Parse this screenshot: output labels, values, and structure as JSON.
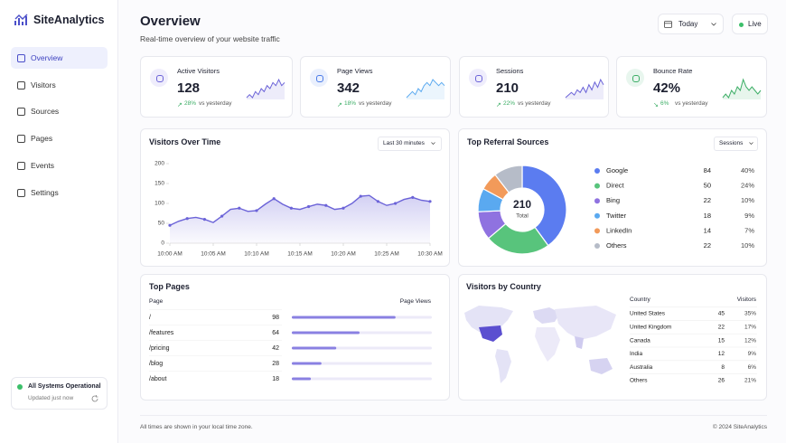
{
  "brand": "SiteAnalytics",
  "nav": [
    "Overview",
    "Visitors",
    "Sources",
    "Pages",
    "Events",
    "Settings"
  ],
  "status": {
    "title": "All Systems Operational",
    "subtitle": "Updated just now"
  },
  "header": {
    "title": "Overview",
    "subtitle": "Real-time overview of your website traffic",
    "date": "Today",
    "live": "Live"
  },
  "kpis": [
    {
      "label": "Active Visitors",
      "value": 128,
      "change": "28%",
      "note": "vs yesterday",
      "sparkline": [
        3,
        4,
        3,
        5,
        4,
        6,
        5,
        7,
        6,
        8,
        7,
        9,
        7,
        8
      ]
    },
    {
      "label": "Page Views",
      "value": 342,
      "change": "18%",
      "note": "vs yesterday",
      "sparkline": [
        3,
        4,
        5,
        4,
        6,
        5,
        7,
        8,
        7,
        9,
        8,
        7,
        8,
        7
      ]
    },
    {
      "label": "Sessions",
      "value": 210,
      "change": "22%",
      "note": "vs yesterday",
      "sparkline": [
        2,
        3,
        4,
        3,
        5,
        4,
        6,
        4,
        7,
        5,
        8,
        6,
        9,
        7
      ]
    },
    {
      "label": "Bounce Rate",
      "value": "42%",
      "change": "6%",
      "note": "vs yesterday",
      "sparkline": [
        3,
        4,
        3,
        5,
        4,
        6,
        5,
        8,
        6,
        5,
        6,
        5,
        4,
        5
      ]
    }
  ],
  "visitors_chart": {
    "type": "line",
    "title": "Visitors Over Time",
    "range": "Last 30 minutes",
    "color": "#6b63d8",
    "x_labels": [
      "10:00 AM",
      "10:05 AM",
      "10:10 AM",
      "10:15 AM",
      "10:20 AM",
      "10:25 AM",
      "10:30 AM"
    ],
    "values": [
      45,
      55,
      62,
      65,
      60,
      52,
      68,
      85,
      88,
      80,
      82,
      98,
      112,
      98,
      88,
      85,
      92,
      98,
      95,
      85,
      88,
      100,
      118,
      120,
      105,
      95,
      100,
      110,
      115,
      108,
      105
    ],
    "ylim": [
      0,
      200
    ],
    "yticks": [
      0,
      50,
      100,
      150,
      200
    ]
  },
  "referrals": {
    "type": "pie",
    "title": "Top Referral Sources",
    "metric": "Sessions",
    "total": 210,
    "total_label": "Total",
    "items": [
      {
        "name": "Google",
        "value": 84,
        "share": "40%",
        "color": "#5b7cf0"
      },
      {
        "name": "Direct",
        "value": 50,
        "share": "24%",
        "color": "#58c47c"
      },
      {
        "name": "Bing",
        "value": 22,
        "share": "10%",
        "color": "#8f72e0"
      },
      {
        "name": "Twitter",
        "value": 18,
        "share": "9%",
        "color": "#5aa9f0"
      },
      {
        "name": "LinkedIn",
        "value": 14,
        "share": "7%",
        "color": "#f29a5a"
      },
      {
        "name": "Others",
        "value": 22,
        "share": "10%",
        "color": "#b6bcc8"
      }
    ]
  },
  "top_pages": {
    "title": "Top Pages",
    "columns": [
      "Page",
      "Page Views"
    ],
    "rows": [
      {
        "page": "/",
        "views": 98
      },
      {
        "page": "/features",
        "views": 64
      },
      {
        "page": "/pricing",
        "views": 42
      },
      {
        "page": "/blog",
        "views": 28
      },
      {
        "page": "/about",
        "views": 18
      }
    ]
  },
  "countries": {
    "title": "Visitors by Country",
    "columns": [
      "Country",
      "Visitors"
    ],
    "rows": [
      {
        "name": "United States",
        "visitors": 45,
        "share": "35%"
      },
      {
        "name": "United Kingdom",
        "visitors": 22,
        "share": "17%"
      },
      {
        "name": "Canada",
        "visitors": 15,
        "share": "12%"
      },
      {
        "name": "India",
        "visitors": 12,
        "share": "9%"
      },
      {
        "name": "Australia",
        "visitors": 8,
        "share": "6%"
      },
      {
        "name": "Others",
        "visitors": 26,
        "share": "21%"
      }
    ]
  },
  "footer": {
    "note": "All times are shown in your local time zone.",
    "copyright": "© 2024 SiteAnalytics"
  }
}
